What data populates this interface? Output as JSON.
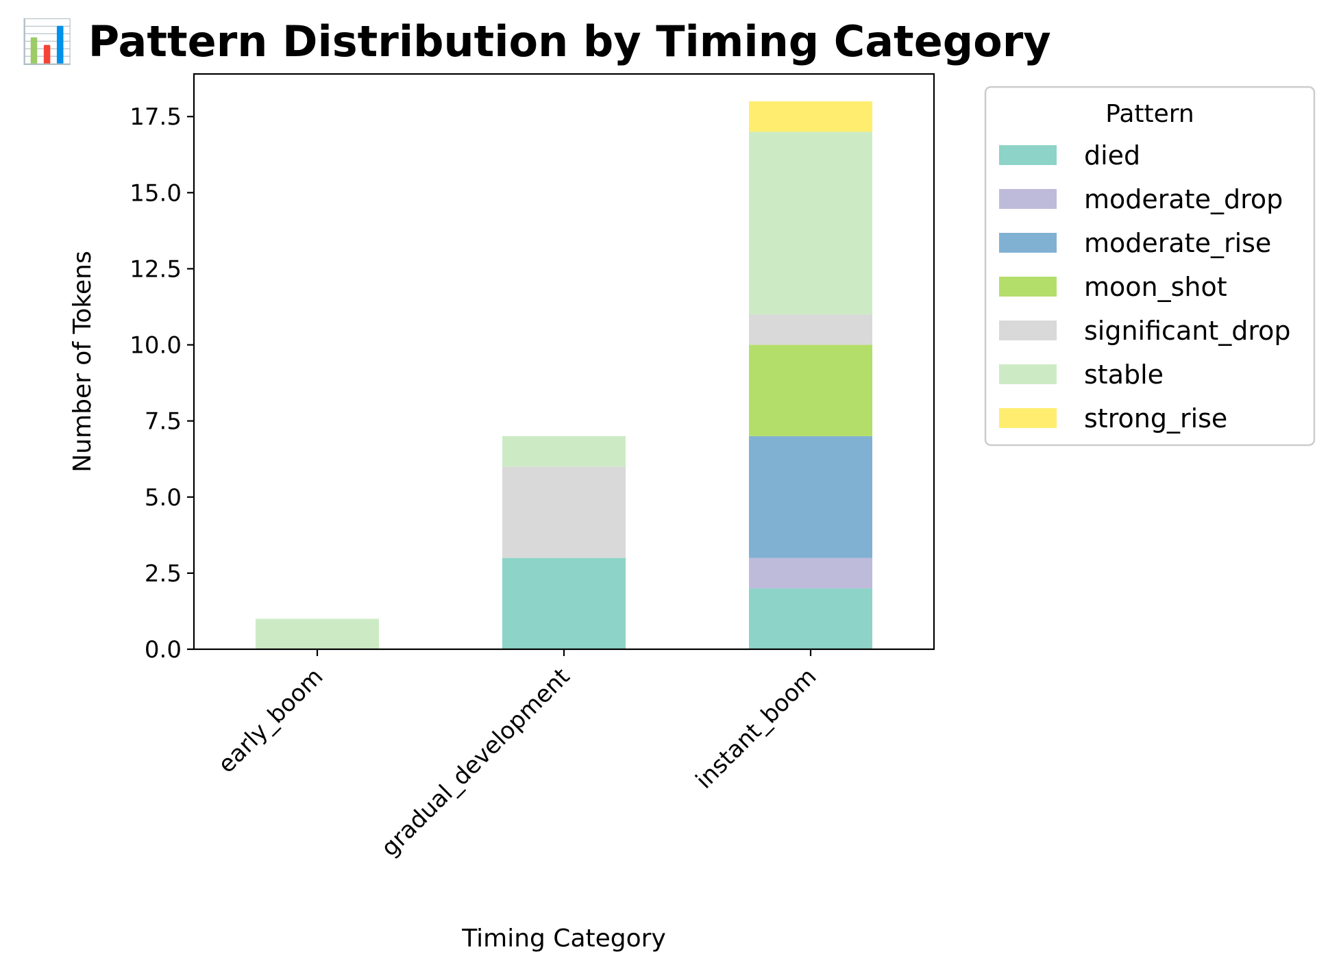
{
  "chart_data": {
    "type": "bar",
    "stacked": true,
    "title": "📊 Pattern Distribution by Timing Category",
    "title_icon": "bar-chart-icon",
    "xlabel": "Timing Category",
    "ylabel": "Number of Tokens",
    "categories": [
      "early_boom",
      "gradual_development",
      "instant_boom"
    ],
    "ylim": [
      0,
      18.9
    ],
    "yticks": [
      "0.0",
      "2.5",
      "5.0",
      "7.5",
      "10.0",
      "12.5",
      "15.0",
      "17.5"
    ],
    "grid": false,
    "legend": {
      "title": "Pattern",
      "placement": "outside-upper-right"
    },
    "series": [
      {
        "name": "died",
        "color": "#8dd3c7",
        "values": [
          0,
          3,
          2
        ]
      },
      {
        "name": "moderate_drop",
        "color": "#bebada",
        "values": [
          0,
          0,
          1
        ]
      },
      {
        "name": "moderate_rise",
        "color": "#80b1d3",
        "values": [
          0,
          0,
          4
        ]
      },
      {
        "name": "moon_shot",
        "color": "#b3de69",
        "values": [
          0,
          0,
          3
        ]
      },
      {
        "name": "significant_drop",
        "color": "#d9d9d9",
        "values": [
          0,
          3,
          1
        ]
      },
      {
        "name": "stable",
        "color": "#ccebc5",
        "values": [
          1,
          1,
          6
        ]
      },
      {
        "name": "strong_rise",
        "color": "#ffed6f",
        "values": [
          0,
          0,
          1
        ]
      }
    ]
  }
}
